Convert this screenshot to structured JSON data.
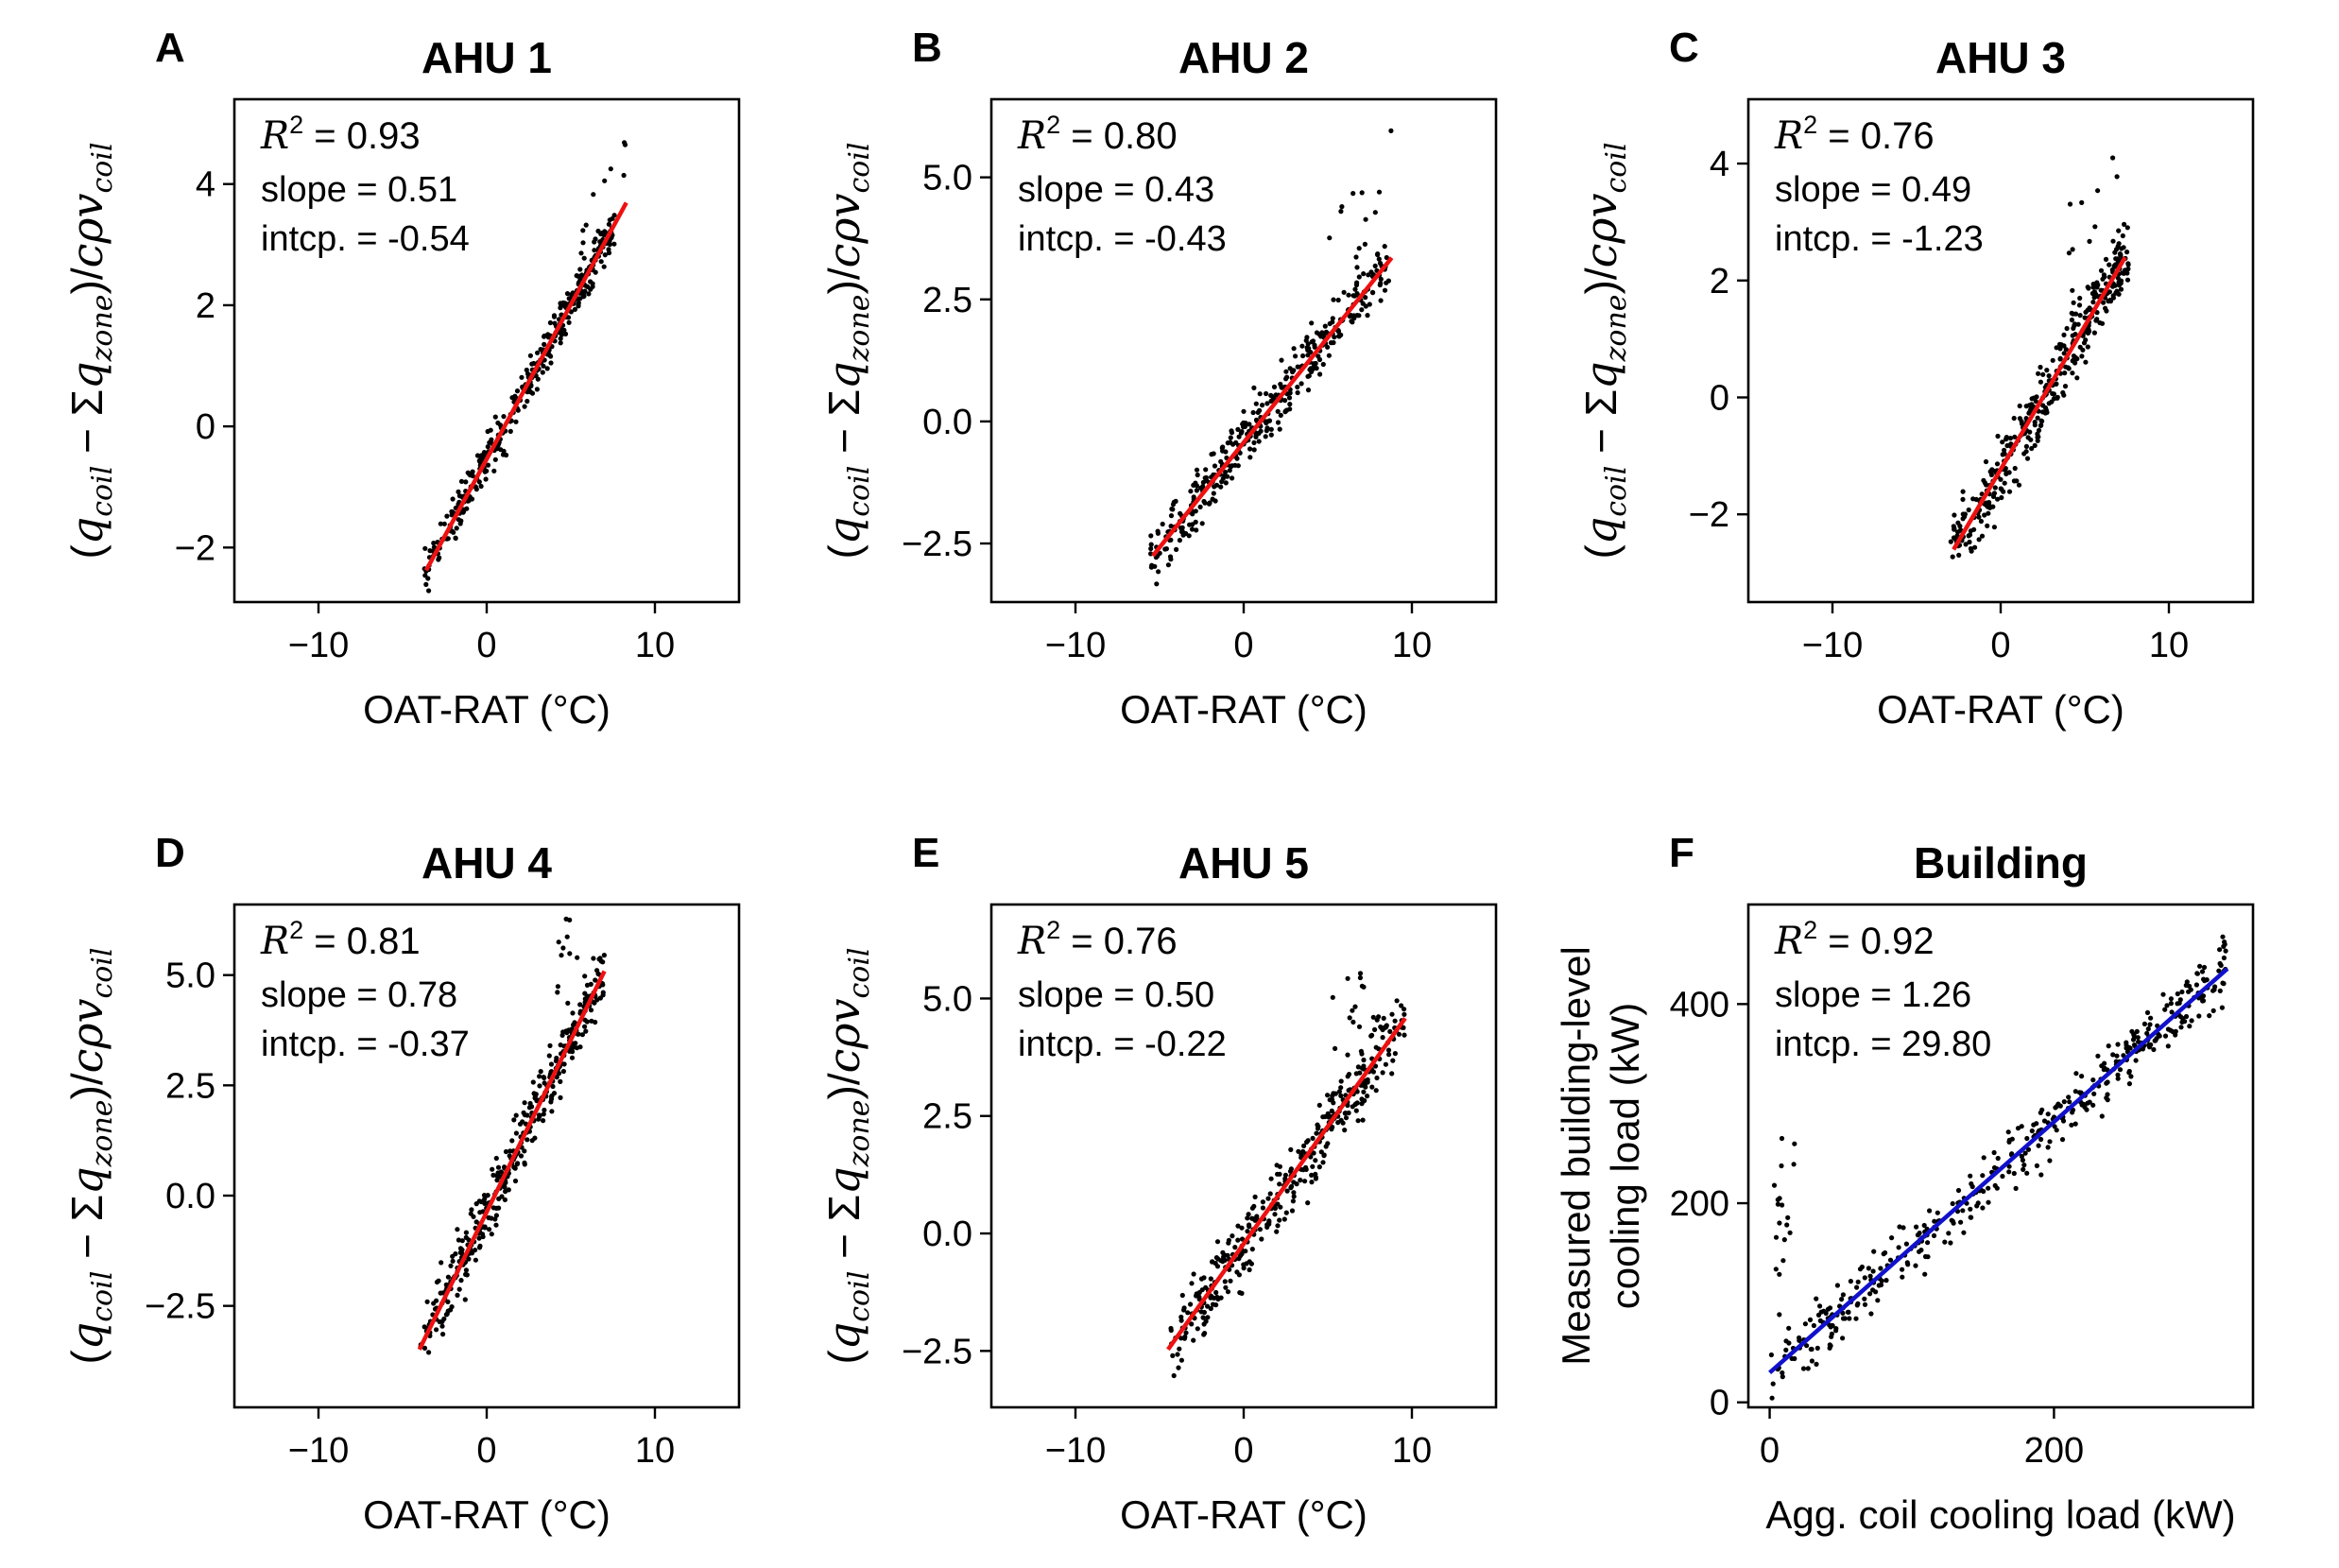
{
  "chart_data": [
    {
      "type": "scatter",
      "letter": "A",
      "title": "AHU 1",
      "xlabel": "OAT-RAT (°C)",
      "ylabel_text": "(q_coil − Σq_zone)/cρv_coil",
      "ylabel": {
        "open": "(",
        "q1": "q",
        "s1": "coil",
        "minus": " − Σ",
        "q2": "q",
        "s2": "zone",
        "mid": ")/",
        "c": "cρv",
        "s3": "coil"
      },
      "xlim": [
        -15,
        15
      ],
      "ylim": [
        -2.9,
        5.4
      ],
      "xticks": [
        -10,
        0,
        10
      ],
      "xtick_labels": [
        "−10",
        "0",
        "10"
      ],
      "yticks": [
        -2,
        0,
        2,
        4
      ],
      "ytick_labels": [
        "−2",
        "0",
        "2",
        "4"
      ],
      "r2": {
        "label": "R",
        "sup": "2",
        "value": " = 0.93"
      },
      "slope_text": "slope = 0.51",
      "intercept_text": "intcp. = -0.54",
      "fit": {
        "color": "#ee1111",
        "x0": -3.6,
        "x1": 8.3,
        "slope": 0.51,
        "intercept": -0.54
      },
      "points": {
        "n": 380,
        "xmin": -3.8,
        "xmax": 7.6,
        "noise": 0.35,
        "tail": {
          "n": 10,
          "xmin": 5.5,
          "xmax": 8.3,
          "offset": 0.8
        }
      }
    },
    {
      "type": "scatter",
      "letter": "B",
      "title": "AHU 2",
      "xlabel": "OAT-RAT (°C)",
      "ylabel_text": "(q_coil − Σq_zone)/cρv_coil",
      "ylabel": {
        "open": "(",
        "q1": "q",
        "s1": "coil",
        "minus": " − Σ",
        "q2": "q",
        "s2": "zone",
        "mid": ")/",
        "c": "cρv",
        "s3": "coil"
      },
      "xlim": [
        -15,
        15
      ],
      "ylim": [
        -3.7,
        6.6
      ],
      "xticks": [
        -10,
        0,
        10
      ],
      "xtick_labels": [
        "−10",
        "0",
        "10"
      ],
      "yticks": [
        -2.5,
        0,
        2.5,
        5
      ],
      "ytick_labels": [
        "−2.5",
        "0.0",
        "2.5",
        "5.0"
      ],
      "r2": {
        "label": "R",
        "sup": "2",
        "value": " = 0.80"
      },
      "slope_text": "slope = 0.43",
      "intercept_text": "intcp. = -0.43",
      "fit": {
        "color": "#ee1111",
        "x0": -5.4,
        "x1": 8.8,
        "slope": 0.43,
        "intercept": -0.43
      },
      "points": {
        "n": 380,
        "xmin": -5.6,
        "xmax": 8.8,
        "noise": 0.6,
        "tail": {
          "n": 12,
          "xmin": 5.0,
          "xmax": 8.8,
          "offset": 1.8
        }
      }
    },
    {
      "type": "scatter",
      "letter": "C",
      "title": "AHU 3",
      "xlabel": "OAT-RAT (°C)",
      "ylabel_text": "(q_coil − Σq_zone)/cρv_coil",
      "ylabel": {
        "open": "(",
        "q1": "q",
        "s1": "coil",
        "minus": " − Σ",
        "q2": "q",
        "s2": "zone",
        "mid": ")/",
        "c": "cρv",
        "s3": "coil"
      },
      "xlim": [
        -15,
        15
      ],
      "ylim": [
        -3.5,
        5.1
      ],
      "xticks": [
        -10,
        0,
        10
      ],
      "xtick_labels": [
        "−10",
        "0",
        "10"
      ],
      "yticks": [
        -2,
        0,
        2,
        4
      ],
      "ytick_labels": [
        "−2",
        "0",
        "2",
        "4"
      ],
      "r2": {
        "label": "R",
        "sup": "2",
        "value": " = 0.76"
      },
      "slope_text": "slope = 0.49",
      "intercept_text": "intcp. = -1.23",
      "fit": {
        "color": "#ee1111",
        "x0": -2.8,
        "x1": 7.4,
        "slope": 0.49,
        "intercept": -1.23
      },
      "points": {
        "n": 380,
        "xmin": -3.0,
        "xmax": 7.6,
        "noise": 0.6,
        "tail": {
          "n": 10,
          "xmin": 4.0,
          "xmax": 7.6,
          "offset": 1.7
        }
      }
    },
    {
      "type": "scatter",
      "letter": "D",
      "title": "AHU 4",
      "xlabel": "OAT-RAT (°C)",
      "ylabel_text": "(q_coil − Σq_zone)/cρv_coil",
      "ylabel": {
        "open": "(",
        "q1": "q",
        "s1": "coil",
        "minus": " − Σ",
        "q2": "q",
        "s2": "zone",
        "mid": ")/",
        "c": "cρv",
        "s3": "coil"
      },
      "xlim": [
        -15,
        15
      ],
      "ylim": [
        -4.8,
        6.6
      ],
      "xticks": [
        -10,
        0,
        10
      ],
      "xtick_labels": [
        "−10",
        "0",
        "10"
      ],
      "yticks": [
        -2.5,
        0,
        2.5,
        5
      ],
      "ytick_labels": [
        "−2.5",
        "0.0",
        "2.5",
        "5.0"
      ],
      "r2": {
        "label": "R",
        "sup": "2",
        "value": " = 0.81"
      },
      "slope_text": "slope = 0.78",
      "intercept_text": "intcp. = -0.37",
      "fit": {
        "color": "#ee1111",
        "x0": -4.0,
        "x1": 7.0,
        "slope": 0.78,
        "intercept": -0.37
      },
      "points": {
        "n": 380,
        "xmin": -4.0,
        "xmax": 7.0,
        "noise": 0.7,
        "tail": {
          "n": 10,
          "xmin": 4.0,
          "xmax": 5.6,
          "offset": 2.0
        }
      }
    },
    {
      "type": "scatter",
      "letter": "E",
      "title": "AHU 5",
      "xlabel": "OAT-RAT (°C)",
      "ylabel_text": "(q_coil − Σq_zone)/cρv_coil",
      "ylabel": {
        "open": "(",
        "q1": "q",
        "s1": "coil",
        "minus": " − Σ",
        "q2": "q",
        "s2": "zone",
        "mid": ")/",
        "c": "cρv",
        "s3": "coil"
      },
      "xlim": [
        -15,
        15
      ],
      "ylim": [
        -3.7,
        7.0
      ],
      "xticks": [
        -10,
        0,
        10
      ],
      "xtick_labels": [
        "−10",
        "0",
        "10"
      ],
      "yticks": [
        -2.5,
        0,
        2.5,
        5
      ],
      "ytick_labels": [
        "−2.5",
        "0.0",
        "2.5",
        "5.0"
      ],
      "r2": {
        "label": "R",
        "sup": "2",
        "value": " = 0.76"
      },
      "slope_text": "slope = 0.50",
      "intercept_text": "intcp. = -0.22",
      "fit": {
        "color": "#ee1111",
        "x0": -4.5,
        "x1": 9.6,
        "slope": 0.5,
        "intercept": -0.22
      },
      "points": {
        "n": 380,
        "xmin": -4.4,
        "xmax": 9.6,
        "noise": 0.8,
        "tail": {
          "n": 12,
          "xmin": 5.0,
          "xmax": 7.4,
          "offset": 2.0
        }
      }
    },
    {
      "type": "scatter",
      "letter": "F",
      "title": "Building",
      "xlabel": "Agg. coil cooling load (kW)",
      "ylabel_lines": [
        "Measured building-level",
        "cooling load (kW)"
      ],
      "xlim": [
        -15,
        340
      ],
      "ylim": [
        -5,
        500
      ],
      "xticks": [
        0,
        200
      ],
      "xtick_labels": [
        "0",
        "200"
      ],
      "yticks": [
        0,
        200,
        400
      ],
      "ytick_labels": [
        "0",
        "200",
        "400"
      ],
      "r2": {
        "label": "R",
        "sup": "2",
        "value": " = 0.92"
      },
      "slope_text": "slope = 1.26",
      "intercept_text": "intcp. = 29.80",
      "fit": {
        "color": "#1111cc",
        "x0": 0,
        "x1": 322,
        "slope": 1.26,
        "intercept": 29.8
      },
      "points": {
        "n": 420,
        "xmin": 0,
        "xmax": 322,
        "noise": 30,
        "tail": {
          "n": 18,
          "xmin": 0,
          "xmax": 18,
          "offset": 150
        }
      }
    }
  ]
}
